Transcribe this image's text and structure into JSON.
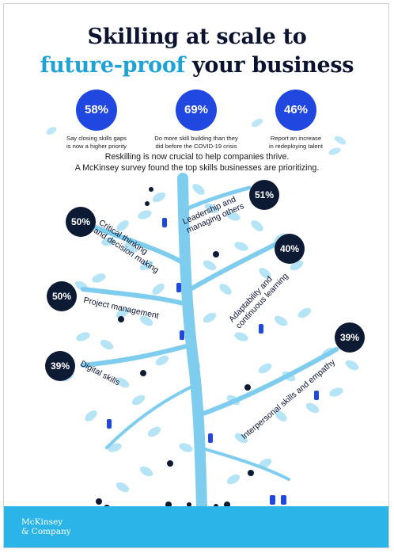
{
  "title": {
    "line1": "Skilling at scale to",
    "line2_accent": "future-proof",
    "line2_rest": " your business"
  },
  "stats": [
    {
      "value": "58%",
      "desc_line1": "Say closing skills gaps",
      "desc_line2": "is now a higher priority"
    },
    {
      "value": "69%",
      "desc_line1": "Do more skill building than they",
      "desc_line2": "did before the COVID-19 crisis"
    },
    {
      "value": "46%",
      "desc_line1": "Report an increase",
      "desc_line2": "in redeploying talent"
    }
  ],
  "intro": {
    "line1": "Reskilling is now crucial to help companies thrive.",
    "line2": "A McKinsey survey found the top skills businesses are prioritizing."
  },
  "skills": [
    {
      "value": "51%",
      "label_line1": "Leadership and",
      "label_line2": "managing others"
    },
    {
      "value": "50%",
      "label_line1": "Critical thinking",
      "label_line2": "and decision making"
    },
    {
      "value": "40%",
      "label_line1": "Adaptability and",
      "label_line2": "continuous learning"
    },
    {
      "value": "50%",
      "label_line1": "Project management",
      "label_line2": ""
    },
    {
      "value": "39%",
      "label_line1": "Interpersonal skills and empathy",
      "label_line2": ""
    },
    {
      "value": "39%",
      "label_line1": "Digital skills",
      "label_line2": ""
    }
  ],
  "logo": {
    "line1": "McKinsey",
    "line2": "& Company"
  },
  "colors": {
    "navy": "#0b1330",
    "accent": "#1fa3d6",
    "stat_blue": "#2047e0",
    "tree": "#8fd3f1",
    "ground": "#2bb4e8"
  }
}
